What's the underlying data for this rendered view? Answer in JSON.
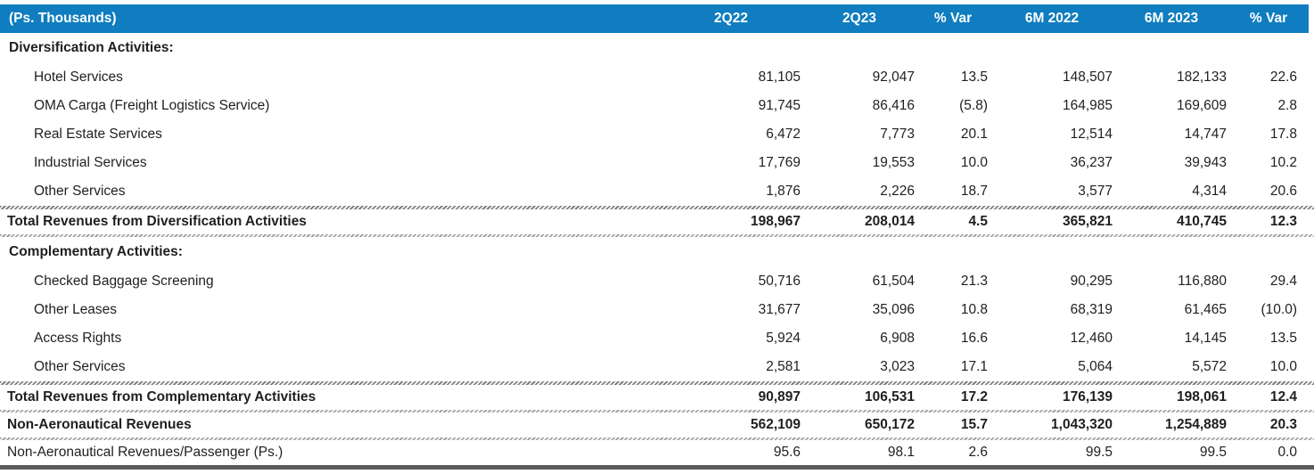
{
  "title": "(Ps. Thousands)",
  "columns": [
    "2Q22",
    "2Q23",
    "% Var",
    "6M 2022",
    "6M 2023",
    "% Var"
  ],
  "column_keys": [
    "2q22",
    "2q23",
    "pct-var-quarter",
    "6m-2022",
    "6m-2023",
    "pct-var-6m"
  ],
  "colors": {
    "header_bg": "#0f7dbf",
    "header_text": "#ffffff",
    "body_text": "#1f1f1f",
    "bottom_bar": "#5a5a5a"
  },
  "rows": [
    {
      "type": "section",
      "label": "Diversification Activities:",
      "values": [
        "",
        "",
        "",
        "",
        "",
        ""
      ]
    },
    {
      "type": "item",
      "label": "Hotel Services",
      "values": [
        "81,105",
        "92,047",
        "13.5",
        "148,507",
        "182,133",
        "22.6"
      ]
    },
    {
      "type": "item",
      "label": "OMA Carga (Freight Logistics Service)",
      "values": [
        "91,745",
        "86,416",
        "(5.8)",
        "164,985",
        "169,609",
        "2.8"
      ]
    },
    {
      "type": "item",
      "label": "Real Estate Services",
      "values": [
        "6,472",
        "7,773",
        "20.1",
        "12,514",
        "14,747",
        "17.8"
      ]
    },
    {
      "type": "item",
      "label": "Industrial Services",
      "values": [
        "17,769",
        "19,553",
        "10.0",
        "36,237",
        "39,943",
        "10.2"
      ]
    },
    {
      "type": "item",
      "label": "Other Services",
      "values": [
        "1,876",
        "2,226",
        "18.7",
        "3,577",
        "4,314",
        "20.6"
      ]
    },
    {
      "type": "total",
      "label": "Total Revenues from Diversification Activities",
      "values": [
        "198,967",
        "208,014",
        "4.5",
        "365,821",
        "410,745",
        "12.3"
      ]
    },
    {
      "type": "section",
      "label": "Complementary Activities:",
      "values": [
        "",
        "",
        "",
        "",
        "",
        ""
      ]
    },
    {
      "type": "item",
      "label": "Checked Baggage Screening",
      "values": [
        "50,716",
        "61,504",
        "21.3",
        "90,295",
        "116,880",
        "29.4"
      ]
    },
    {
      "type": "item",
      "label": "Other Leases",
      "values": [
        "31,677",
        "35,096",
        "10.8",
        "68,319",
        "61,465",
        "(10.0)"
      ]
    },
    {
      "type": "item",
      "label": "Access Rights",
      "values": [
        "5,924",
        "6,908",
        "16.6",
        "12,460",
        "14,145",
        "13.5"
      ]
    },
    {
      "type": "item",
      "label": "Other Services",
      "values": [
        "2,581",
        "3,023",
        "17.1",
        "5,064",
        "5,572",
        "10.0"
      ]
    },
    {
      "type": "total",
      "label": "Total Revenues from Complementary Activities",
      "values": [
        "90,897",
        "106,531",
        "17.2",
        "176,139",
        "198,061",
        "12.4"
      ]
    },
    {
      "type": "grand",
      "label": "Non-Aeronautical Revenues",
      "values": [
        "562,109",
        "650,172",
        "15.7",
        "1,043,320",
        "1,254,889",
        "20.3"
      ]
    },
    {
      "type": "plain",
      "label": "Non-Aeronautical Revenues/Passenger (Ps.)",
      "values": [
        "95.6",
        "98.1",
        "2.6",
        "99.5",
        "99.5",
        "0.0"
      ]
    }
  ]
}
